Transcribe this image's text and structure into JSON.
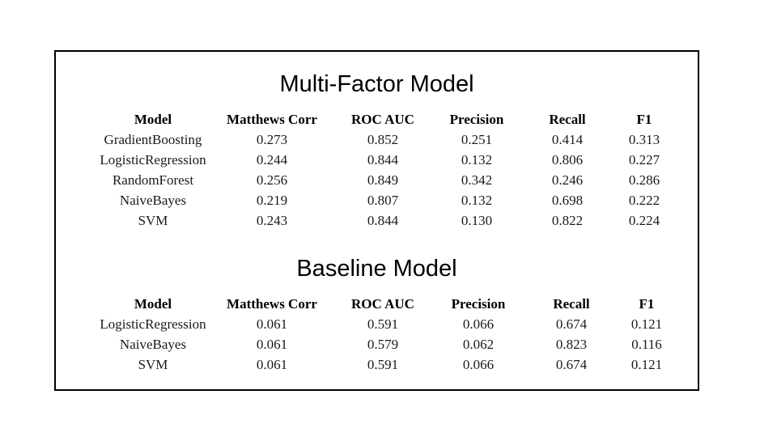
{
  "multi_factor": {
    "title": "Multi-Factor Model",
    "columns": [
      "Model",
      "Matthews Corr",
      "ROC AUC",
      "Precision",
      "Recall",
      "F1"
    ],
    "rows": [
      [
        "GradientBoosting",
        "0.273",
        "0.852",
        "0.251",
        "0.414",
        "0.313"
      ],
      [
        "LogisticRegression",
        "0.244",
        "0.844",
        "0.132",
        "0.806",
        "0.227"
      ],
      [
        "RandomForest",
        "0.256",
        "0.849",
        "0.342",
        "0.246",
        "0.286"
      ],
      [
        "NaiveBayes",
        "0.219",
        "0.807",
        "0.132",
        "0.698",
        "0.222"
      ],
      [
        "SVM",
        "0.243",
        "0.844",
        "0.130",
        "0.822",
        "0.224"
      ]
    ]
  },
  "baseline": {
    "title": "Baseline Model",
    "columns": [
      "Model",
      "Matthews Corr",
      "ROC AUC",
      "Precision",
      "Recall",
      "F1"
    ],
    "rows": [
      [
        "LogisticRegression",
        "0.061",
        "0.591",
        "0.066",
        "0.674",
        "0.121"
      ],
      [
        "NaiveBayes",
        "0.061",
        "0.579",
        "0.062",
        "0.823",
        "0.116"
      ],
      [
        "SVM",
        "0.061",
        "0.591",
        "0.066",
        "0.674",
        "0.121"
      ]
    ]
  }
}
